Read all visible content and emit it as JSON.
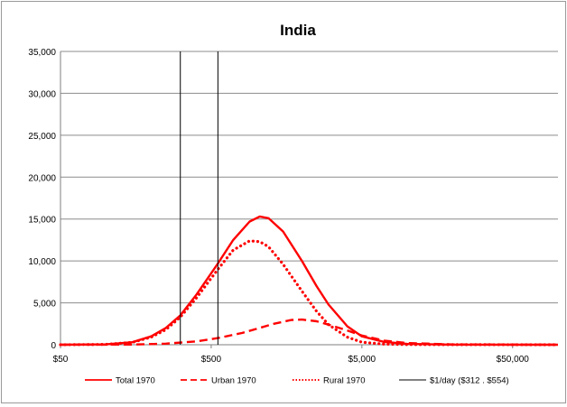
{
  "chart_data": {
    "type": "line",
    "title": "India",
    "xlabel": "",
    "ylabel": "",
    "x_scale": "log",
    "xlim": [
      50,
      100000
    ],
    "ylim": [
      0,
      35000
    ],
    "grid": "horizontal",
    "legend_position": "bottom",
    "x_ticks": [
      {
        "value": 50,
        "label": "$50"
      },
      {
        "value": 500,
        "label": "$500"
      },
      {
        "value": 5000,
        "label": "$5,000"
      },
      {
        "value": 50000,
        "label": "$50,000"
      }
    ],
    "y_ticks": [
      {
        "value": 0,
        "label": "0"
      },
      {
        "value": 5000,
        "label": "5,000"
      },
      {
        "value": 10000,
        "label": "10,000"
      },
      {
        "value": 15000,
        "label": "15,000"
      },
      {
        "value": 20000,
        "label": "20,000"
      },
      {
        "value": 25000,
        "label": "25,000"
      },
      {
        "value": 30000,
        "label": "30,000"
      },
      {
        "value": 35000,
        "label": "35,000"
      }
    ],
    "series": [
      {
        "name": "Total 1970",
        "color": "#ff0000",
        "style": "solid",
        "points": [
          [
            50,
            0
          ],
          [
            100,
            40
          ],
          [
            150,
            300
          ],
          [
            200,
            1000
          ],
          [
            250,
            2000
          ],
          [
            312,
            3500
          ],
          [
            400,
            6000
          ],
          [
            554,
            9700
          ],
          [
            700,
            12500
          ],
          [
            900,
            14700
          ],
          [
            1050,
            15300
          ],
          [
            1200,
            15100
          ],
          [
            1500,
            13500
          ],
          [
            2000,
            10000
          ],
          [
            2500,
            7000
          ],
          [
            3000,
            4800
          ],
          [
            4000,
            2200
          ],
          [
            5000,
            1000
          ],
          [
            7000,
            350
          ],
          [
            10000,
            100
          ],
          [
            20000,
            10
          ],
          [
            100000,
            0
          ]
        ]
      },
      {
        "name": "Urban 1970",
        "color": "#ff0000",
        "style": "dashed",
        "points": [
          [
            50,
            0
          ],
          [
            150,
            20
          ],
          [
            250,
            130
          ],
          [
            400,
            400
          ],
          [
            554,
            800
          ],
          [
            800,
            1400
          ],
          [
            1000,
            1900
          ],
          [
            1300,
            2500
          ],
          [
            1700,
            2950
          ],
          [
            2000,
            3000
          ],
          [
            2500,
            2800
          ],
          [
            3000,
            2400
          ],
          [
            4000,
            1700
          ],
          [
            5000,
            1100
          ],
          [
            7000,
            500
          ],
          [
            10000,
            200
          ],
          [
            20000,
            30
          ],
          [
            100000,
            0
          ]
        ]
      },
      {
        "name": "Rural 1970",
        "color": "#ff0000",
        "style": "dotted",
        "points": [
          [
            50,
            0
          ],
          [
            100,
            40
          ],
          [
            150,
            280
          ],
          [
            200,
            900
          ],
          [
            250,
            1800
          ],
          [
            312,
            3300
          ],
          [
            400,
            5600
          ],
          [
            554,
            9000
          ],
          [
            700,
            11300
          ],
          [
            900,
            12400
          ],
          [
            1050,
            12300
          ],
          [
            1200,
            11700
          ],
          [
            1500,
            9600
          ],
          [
            2000,
            6400
          ],
          [
            2500,
            4000
          ],
          [
            3000,
            2400
          ],
          [
            4000,
            900
          ],
          [
            5000,
            300
          ],
          [
            7000,
            80
          ],
          [
            10000,
            20
          ],
          [
            100000,
            0
          ]
        ]
      },
      {
        "name": "$1/day ($312 . $554)",
        "color": "#000000",
        "style": "solid",
        "vertical_lines": [
          312,
          554
        ]
      }
    ]
  }
}
